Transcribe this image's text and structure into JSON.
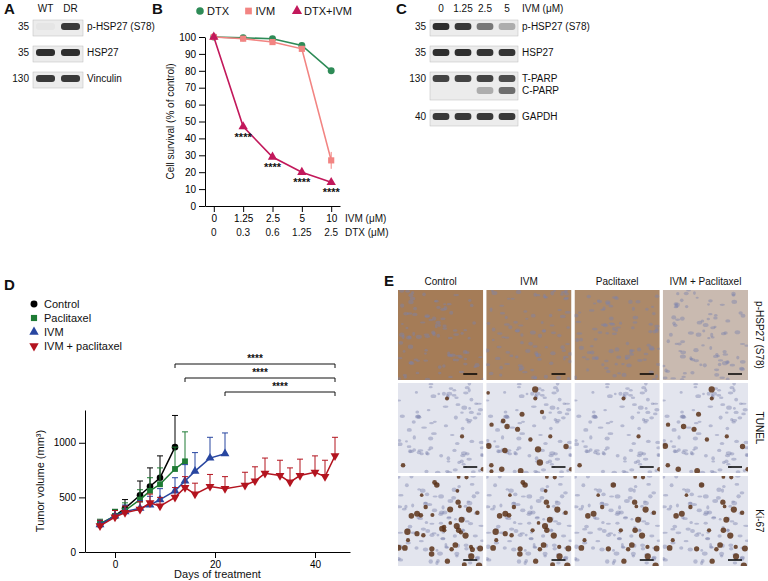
{
  "blots": [
    {
      "panel": "A",
      "lanes": [
        "WT",
        "DR"
      ],
      "rows": [
        {
          "mw": 35,
          "bands": [
            {
              "label": "p-HSP27 (S78)",
              "intensity": [
                0.03,
                0.85
              ]
            }
          ]
        },
        {
          "mw": 35,
          "bands": [
            {
              "label": "HSP27",
              "intensity": [
                0.9,
                0.9
              ]
            }
          ]
        },
        {
          "mw": 130,
          "bands": [
            {
              "label": "Vinculin",
              "intensity": [
                0.85,
                0.85
              ]
            }
          ]
        }
      ]
    },
    {
      "panel": "C",
      "lane_title": "IVM (μM)",
      "lanes": [
        0,
        1.25,
        2.5,
        5
      ],
      "rows": [
        {
          "mw": 35,
          "bands": [
            {
              "label": "p-HSP27 (S78)",
              "intensity": [
                0.9,
                0.85,
                0.55,
                0.3
              ]
            }
          ]
        },
        {
          "mw": 35,
          "bands": [
            {
              "label": "HSP27",
              "intensity": [
                0.9,
                0.9,
                0.88,
                0.88
              ]
            }
          ]
        },
        {
          "mw": 130,
          "bands": [
            {
              "label": "T-PARP",
              "intensity": [
                0.8,
                0.8,
                0.8,
                0.75
              ]
            },
            {
              "label": "C-PARP",
              "intensity": [
                0.0,
                0.0,
                0.3,
                0.6
              ]
            }
          ]
        },
        {
          "mw": 40,
          "bands": [
            {
              "label": "GAPDH",
              "intensity": [
                0.85,
                0.85,
                0.85,
                0.85
              ]
            }
          ]
        }
      ]
    }
  ],
  "chart_data": [
    {
      "panel": "B",
      "type": "line",
      "ylabel": "Cell survival (% of control)",
      "ylim": [
        0,
        100
      ],
      "yticks": [
        0,
        10,
        20,
        30,
        40,
        50,
        60,
        70,
        80,
        90,
        100
      ],
      "categories": [
        0,
        1.25,
        2.5,
        5,
        10
      ],
      "xlabel": "IVM (μM)",
      "categories2": [
        0,
        0.3,
        0.6,
        1.25,
        2.5
      ],
      "xlabel2": "DTX (μM)",
      "legend": "top",
      "series": [
        {
          "name": "DTX",
          "color": "#2e8b57",
          "marker": "circle",
          "values": [
            100,
            99.5,
            99,
            95,
            80
          ],
          "errors": [
            0,
            0.5,
            0.5,
            1,
            1.5
          ]
        },
        {
          "name": "IVM",
          "color": "#f28482",
          "marker": "square",
          "values": [
            100,
            99,
            97,
            93,
            27
          ],
          "errors": [
            0,
            0.5,
            1,
            1.5,
            5
          ]
        },
        {
          "name": "DTX+IVM",
          "color": "#c2185b",
          "marker": "triangle",
          "values": [
            100,
            47,
            29,
            20,
            14
          ],
          "errors": [
            0,
            1.5,
            1,
            1,
            1
          ]
        }
      ],
      "annotations": [
        {
          "index": 1,
          "text": "****"
        },
        {
          "index": 2,
          "text": "****"
        },
        {
          "index": 3,
          "text": "****"
        },
        {
          "index": 4,
          "text": "****"
        }
      ]
    },
    {
      "panel": "D",
      "type": "line",
      "xlabel": "Days of treatment",
      "ylabel": "Tumor volume (mm³)",
      "xlim": [
        -6,
        47
      ],
      "xticks": [
        0,
        20,
        40
      ],
      "ylim": [
        0,
        1300
      ],
      "yticks": [
        0,
        500,
        1000
      ],
      "legend": "top-left",
      "series": [
        {
          "name": "Control",
          "color": "#000000",
          "marker": "circle",
          "x": [
            -3,
            0,
            2,
            5,
            7,
            9,
            12
          ],
          "values": [
            250,
            330,
            400,
            520,
            600,
            680,
            960
          ],
          "errors": [
            40,
            60,
            80,
            130,
            170,
            200,
            290
          ]
        },
        {
          "name": "Paclitaxel",
          "color": "#1e7b34",
          "marker": "square",
          "x": [
            -3,
            0,
            2,
            5,
            7,
            9,
            12,
            14
          ],
          "values": [
            260,
            330,
            380,
            480,
            560,
            620,
            760,
            830
          ],
          "errors": [
            40,
            60,
            70,
            90,
            120,
            150,
            200,
            270
          ]
        },
        {
          "name": "IVM",
          "color": "#2846a0",
          "marker": "triangle",
          "x": [
            -3,
            0,
            2,
            5,
            7,
            9,
            12,
            14,
            16,
            19,
            22
          ],
          "values": [
            250,
            330,
            370,
            400,
            430,
            480,
            560,
            650,
            740,
            860,
            900
          ],
          "errors": [
            40,
            50,
            60,
            70,
            80,
            100,
            120,
            150,
            170,
            190,
            190
          ]
        },
        {
          "name": "IVM + paclitaxel",
          "color": "#b3141f",
          "marker": "triangle-down",
          "x": [
            -3,
            0,
            2,
            5,
            7,
            9,
            12,
            14,
            16,
            19,
            22,
            26,
            28,
            30,
            33,
            35,
            37,
            40,
            42,
            44
          ],
          "values": [
            240,
            320,
            360,
            390,
            450,
            420,
            500,
            590,
            530,
            600,
            580,
            610,
            650,
            720,
            700,
            640,
            700,
            730,
            690,
            880
          ],
          "errors": [
            50,
            60,
            60,
            70,
            80,
            80,
            90,
            100,
            100,
            110,
            110,
            120,
            130,
            140,
            140,
            130,
            150,
            150,
            150,
            170
          ]
        }
      ],
      "comparisons": [
        {
          "from": 12,
          "to": 44,
          "text": "****"
        },
        {
          "from": 14,
          "to": 44,
          "text": "****"
        },
        {
          "from": 22,
          "to": 44,
          "text": "****"
        }
      ]
    }
  ],
  "histology": {
    "panel": "E",
    "columns": [
      "Control",
      "IVM",
      "Paclitaxel",
      "IVM + Paclitaxel"
    ],
    "rows": [
      {
        "label": "p-HSP27 (S78)",
        "diffuse": [
          0.85,
          0.8,
          0.75,
          0.35
        ],
        "nuclei": [
          0,
          0,
          0,
          0
        ]
      },
      {
        "label": "TUNEL",
        "diffuse": [
          0,
          0,
          0,
          0
        ],
        "nuclei": [
          0.05,
          0.3,
          0.05,
          0.2
        ]
      },
      {
        "label": "Ki-67",
        "diffuse": [
          0,
          0,
          0,
          0
        ],
        "nuclei": [
          0.6,
          0.5,
          0.35,
          0.35
        ]
      }
    ]
  }
}
